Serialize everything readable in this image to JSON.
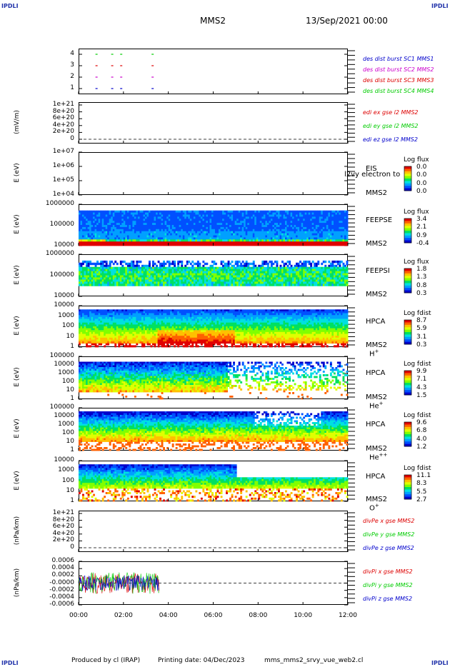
{
  "corners": {
    "tl": "IPDLI",
    "tr": "IPDLI",
    "bl": "IPDLI",
    "br": "IPDLI"
  },
  "header": {
    "mission": "MMS2",
    "date": "13/Sep/2021 00:00"
  },
  "footer": {
    "producer": "Produced by cl (IRAP)",
    "printing": "Printing date: 04/Dec/2023",
    "file": "mms_mms2_srvy_vue_web2.cl"
  },
  "x_ticks": [
    "00:00",
    "02:00",
    "04:00",
    "06:00",
    "08:00",
    "10:00",
    "12:00"
  ],
  "colors": {
    "red": "#dd0000",
    "magenta": "#cc00cc",
    "blue": "#0000cc",
    "green": "#00cc00"
  },
  "chart_data": [
    {
      "type": "scatter",
      "panel": "burst",
      "yticks": [
        "4",
        "3",
        "2",
        "1"
      ],
      "legend": [
        "des dist burst SC1 MMS1",
        "des dist burst SC2 MMS2",
        "des dist burst SC3 MMS3",
        "des dist burst SC4 MMS4"
      ],
      "x_hours": [
        0.8,
        1.5,
        1.9,
        3.3
      ]
    },
    {
      "type": "line",
      "panel": "edi",
      "ylabel": "(mV/m)",
      "yticks": [
        "1e+21",
        "8e+20",
        "6e+20",
        "4e+20",
        "2e+20",
        "0"
      ],
      "legend": [
        "edi ex gse l2 MMS2",
        "edi ey gse l2 MMS2",
        "edi ez gse l2 MMS2"
      ]
    },
    {
      "type": "heatmap",
      "panel": "eis",
      "ylabel": "E (eV)",
      "yticks": [
        "1e+07",
        "1e+06",
        "1e+05",
        "1e+04"
      ],
      "inst": [
        "EIS",
        "MMS2"
      ],
      "overlay": "l2vy electron to",
      "cb_title": "Log flux",
      "cb_vals": [
        "0.0",
        "0.0",
        "0.0",
        "0.0"
      ]
    },
    {
      "type": "heatmap",
      "panel": "feepse",
      "ylabel": "E (eV)",
      "yticks": [
        "1000000",
        "100000",
        "10000"
      ],
      "inst": [
        "FEEPSE",
        "MMS2"
      ],
      "cb_title": "Log flux",
      "cb_vals": [
        "3.4",
        "2.1",
        "0.9",
        "-0.4"
      ]
    },
    {
      "type": "heatmap",
      "panel": "feepsi",
      "ylabel": "E (eV)",
      "yticks": [
        "1000000",
        "100000",
        "10000"
      ],
      "inst": [
        "FEEPSI",
        "MMS2"
      ],
      "cb_title": "Log flux",
      "cb_vals": [
        "1.8",
        "1.3",
        "0.8",
        "0.3"
      ]
    },
    {
      "type": "heatmap",
      "panel": "hpca_h",
      "ylabel": "E (eV)",
      "yticks": [
        "10000",
        "1000",
        "100",
        "10",
        "1"
      ],
      "inst": [
        "HPCA",
        "MMS2"
      ],
      "species": "H",
      "sup": "+",
      "cb_title": "Log fdist",
      "cb_vals": [
        "8.7",
        "5.9",
        "3.1",
        "0.3"
      ]
    },
    {
      "type": "heatmap",
      "panel": "hpca_he",
      "ylabel": "E (eV)",
      "yticks": [
        "100000",
        "10000",
        "1000",
        "100",
        "10",
        "1"
      ],
      "inst": [
        "HPCA",
        "MMS2"
      ],
      "species": "He",
      "sup": "+",
      "cb_title": "Log fdist",
      "cb_vals": [
        "9.9",
        "7.1",
        "4.3",
        "1.5"
      ]
    },
    {
      "type": "heatmap",
      "panel": "hpca_hepp",
      "ylabel": "E (eV)",
      "yticks": [
        "100000",
        "10000",
        "1000",
        "100",
        "10",
        "1"
      ],
      "inst": [
        "HPCA",
        "MMS2"
      ],
      "species": "He",
      "sup": "++",
      "cb_title": "Log fdist",
      "cb_vals": [
        "9.6",
        "6.8",
        "4.0",
        "1.2"
      ]
    },
    {
      "type": "heatmap",
      "panel": "hpca_o",
      "ylabel": "E (eV)",
      "yticks": [
        "10000",
        "1000",
        "100",
        "10",
        "1"
      ],
      "inst": [
        "HPCA",
        "MMS2"
      ],
      "species": "O",
      "sup": "+",
      "cb_title": "Log fdist",
      "cb_vals": [
        "11.1",
        "8.3",
        "5.5",
        "2.7"
      ]
    },
    {
      "type": "line",
      "panel": "divpe",
      "ylabel": "(nPa/km)",
      "yticks": [
        "1e+21",
        "8e+20",
        "6e+20",
        "4e+20",
        "2e+20",
        "0"
      ],
      "legend": [
        "divPe x gse MMS2",
        "divPe y gse MMS2",
        "divPe z gse MMS2"
      ]
    },
    {
      "type": "line",
      "panel": "divpi",
      "ylabel": "(nPa/km)",
      "yticks": [
        "0.0006",
        "0.0004",
        "0.0002",
        "-0.0000",
        "-0.0002",
        "-0.0004",
        "-0.0006"
      ],
      "legend": [
        "divPi x gse MMS2",
        "divPi y gse MMS2",
        "divPi z gse MMS2"
      ],
      "data_end_hour": 3.6
    }
  ]
}
